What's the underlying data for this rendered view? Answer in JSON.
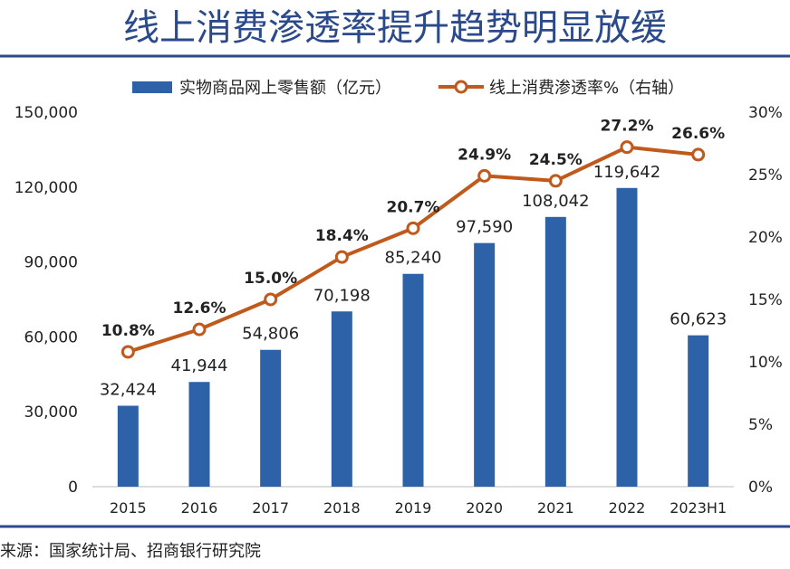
{
  "title": "线上消费渗透率提升趋势明显放缓",
  "source": "来源：国家统计局、招商银行研究院",
  "colors": {
    "title": "#2b4a8b",
    "bar": "#2e62a8",
    "line": "#c05a1c",
    "marker_fill": "#ffffff",
    "rule": "#2b4a8b"
  },
  "chart_data": {
    "type": "bar+line",
    "categories": [
      "2015",
      "2016",
      "2017",
      "2018",
      "2019",
      "2020",
      "2021",
      "2022",
      "2023H1"
    ],
    "legend_placement": "top",
    "grid": false,
    "y_left": {
      "ticks": [
        "150,000",
        "120,000",
        "90,000",
        "60,000",
        "30,000",
        "0"
      ],
      "ylim": [
        0,
        150000
      ]
    },
    "y_right": {
      "ticks": [
        "30%",
        "25%",
        "20%",
        "15%",
        "10%",
        "5%",
        "0%"
      ],
      "ylim": [
        0,
        30
      ]
    },
    "series": [
      {
        "name": "实物商品网上零售额（亿元）",
        "type": "bar",
        "axis": "left",
        "values": [
          32424,
          41944,
          54806,
          70198,
          85240,
          97590,
          108042,
          119642,
          60623
        ],
        "labels": [
          "32,424",
          "41,944",
          "54,806",
          "70,198",
          "85,240",
          "97,590",
          "108,042",
          "119,642",
          "60,623"
        ]
      },
      {
        "name": "线上消费渗透率%（右轴）",
        "type": "line",
        "axis": "right",
        "values": [
          10.8,
          12.6,
          15.0,
          18.4,
          20.7,
          24.9,
          24.5,
          27.2,
          26.6
        ],
        "labels": [
          "10.8%",
          "12.6%",
          "15.0%",
          "18.4%",
          "20.7%",
          "24.9%",
          "24.5%",
          "27.2%",
          "26.6%"
        ]
      }
    ]
  }
}
